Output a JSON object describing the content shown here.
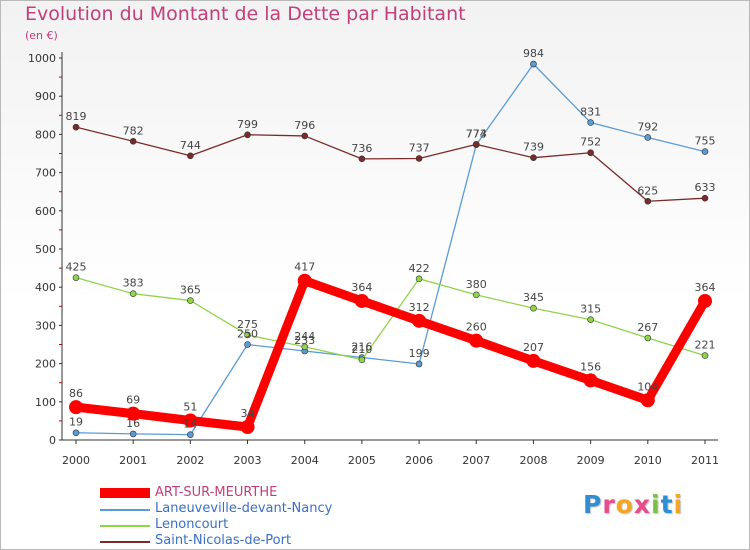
{
  "title": "Evolution du Montant de la Dette par Habitant",
  "unit_label": "(en €)",
  "logo": {
    "text": "Proxiti",
    "letters": [
      {
        "ch": "P",
        "color": "#2e8fd6"
      },
      {
        "ch": "r",
        "color": "#e84c8b"
      },
      {
        "ch": "o",
        "color": "#f5a623"
      },
      {
        "ch": "x",
        "color": "#e84c8b"
      },
      {
        "ch": "i",
        "color": "#7cc242"
      },
      {
        "ch": "t",
        "color": "#2e8fd6"
      },
      {
        "ch": "i",
        "color": "#f5a623"
      }
    ]
  },
  "chart_data": {
    "type": "line",
    "x": [
      "2000",
      "2001",
      "2002",
      "2003",
      "2004",
      "2005",
      "2006",
      "2007",
      "2008",
      "2009",
      "2010",
      "2011"
    ],
    "ylim": [
      0,
      1000
    ],
    "yticks": [
      0,
      100,
      200,
      300,
      400,
      500,
      600,
      700,
      800,
      900,
      1000
    ],
    "grid": false,
    "legend_position": "bottom-left",
    "series": [
      {
        "name": "ART-SUR-MEURTHE",
        "color": "#ff0000",
        "emphasis": true,
        "values": [
          86,
          69,
          51,
          34,
          417,
          364,
          312,
          260,
          207,
          156,
          104,
          364
        ],
        "labels": [
          "86",
          "69",
          "51",
          "34",
          "417",
          "364",
          "312",
          "260",
          "207",
          "156",
          "104",
          "364"
        ]
      },
      {
        "name": "Laneuveville-devant-Nancy",
        "color": "#5b9bd5",
        "emphasis": false,
        "values": [
          19,
          16,
          14,
          250,
          233,
          216,
          199,
          773,
          984,
          831,
          792,
          755
        ],
        "labels": [
          "19",
          "16",
          "14",
          "250",
          "233",
          "216",
          "199",
          "773",
          "984",
          "831",
          "792",
          "755"
        ]
      },
      {
        "name": "Lenoncourt",
        "color": "#8fd44a",
        "emphasis": false,
        "values": [
          425,
          383,
          365,
          275,
          244,
          210,
          422,
          380,
          345,
          315,
          267,
          221
        ],
        "labels": [
          "425",
          "383",
          "365",
          "275",
          "244",
          "210",
          "422",
          "380",
          "345",
          "315",
          "267",
          "221"
        ]
      },
      {
        "name": "Saint-Nicolas-de-Port",
        "color": "#7b2a2a",
        "emphasis": false,
        "values": [
          819,
          782,
          744,
          799,
          796,
          736,
          737,
          774,
          739,
          752,
          625,
          633
        ],
        "labels": [
          "819",
          "782",
          "744",
          "799",
          "796",
          "736",
          "737",
          "774",
          "739",
          "752",
          "625",
          "633"
        ]
      }
    ]
  }
}
